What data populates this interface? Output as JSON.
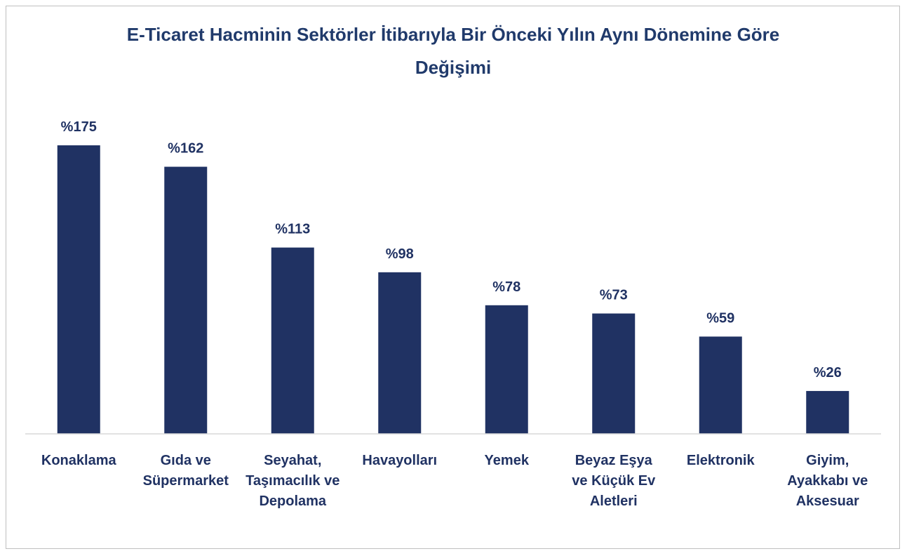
{
  "chart_data": {
    "type": "bar",
    "title": "E-Ticaret Hacminin Sektörler İtibarıyla Bir Önceki Yılın Aynı Dönemine Göre Değişimi",
    "categories": [
      "Konaklama",
      "Gıda ve Süpermarket",
      "Seyahat, Taşımacılık ve Depolama",
      "Havayolları",
      "Yemek",
      "Beyaz Eşya ve Küçük Ev Aletleri",
      "Elektronik",
      "Giyim, Ayakkabı ve Aksesuar"
    ],
    "values": [
      175,
      162,
      113,
      98,
      78,
      73,
      59,
      26
    ],
    "value_labels": [
      "%175",
      "%162",
      "%113",
      "%98",
      "%78",
      "%73",
      "%59",
      "%26"
    ],
    "color": "#203263"
  }
}
